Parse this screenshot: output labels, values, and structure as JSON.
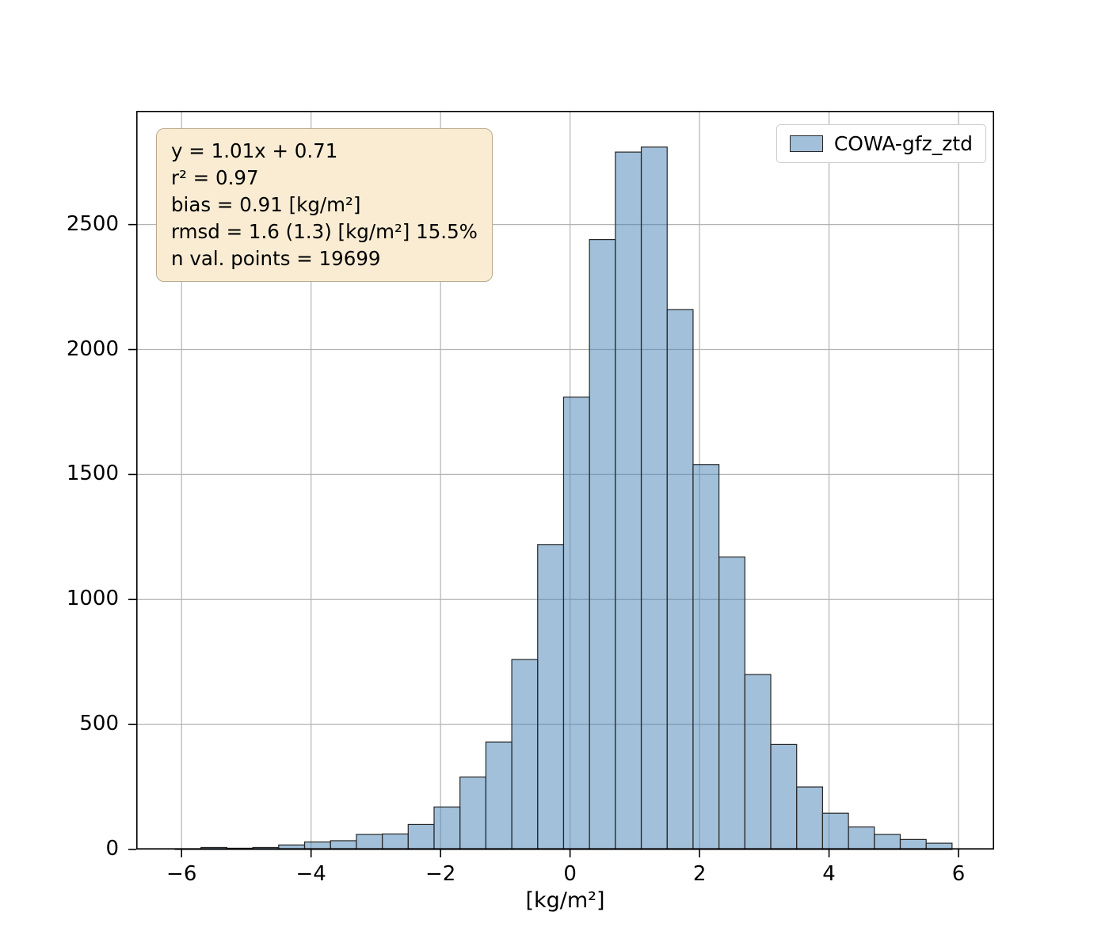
{
  "chart_data": {
    "type": "bar",
    "subtype": "histogram",
    "title": "",
    "xlabel": "[kg/m²]",
    "ylabel": "",
    "xlim": [
      -6.7,
      6.55
    ],
    "ylim": [
      0,
      2955
    ],
    "xticks": [
      -6,
      -4,
      -2,
      0,
      2,
      4,
      6
    ],
    "xtick_labels": [
      "−6",
      "−4",
      "−2",
      "0",
      "2",
      "4",
      "6"
    ],
    "yticks": [
      0,
      500,
      1000,
      1500,
      2000,
      2500
    ],
    "ytick_labels": [
      "0",
      "500",
      "1000",
      "1500",
      "2000",
      "2500"
    ],
    "grid": true,
    "legend_position": "upper right",
    "bin_start": -6.1,
    "bin_width": 0.4,
    "counts": [
      3,
      8,
      5,
      8,
      18,
      30,
      35,
      60,
      62,
      100,
      170,
      290,
      430,
      760,
      1220,
      1810,
      2440,
      2790,
      2810,
      2160,
      1540,
      1170,
      700,
      420,
      250,
      145,
      90,
      60,
      40,
      25
    ],
    "legend": {
      "label": "COWA-gfz_ztd"
    },
    "annotation_lines": [
      "y = 1.01x + 0.71",
      "r² = 0.97",
      "bias = 0.91 [kg/m²]",
      "rmsd = 1.6 (1.3) [kg/m²] 15.5%",
      "n val. points = 19699"
    ],
    "colors": {
      "bar_fill": "rgba(70,130,180,0.5)",
      "bar_edge": "#262626",
      "grid": "#b3b3b3",
      "spine": "#000000",
      "tick": "#000000",
      "annotation_bg": "#f9ecd3",
      "annotation_border": "#b9ab8c",
      "legend_border": "#cbcbcb"
    }
  }
}
